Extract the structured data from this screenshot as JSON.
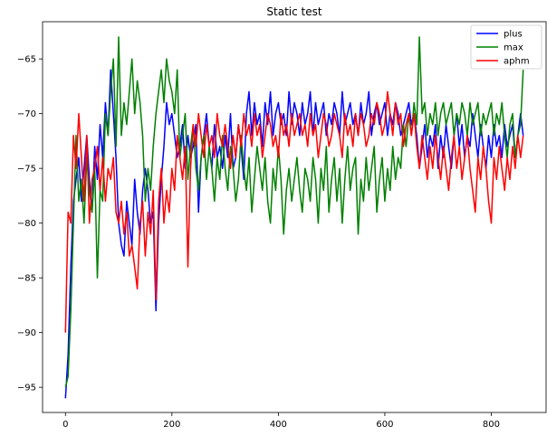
{
  "chart_data": {
    "type": "line",
    "title": "Static test",
    "xlabel": "",
    "ylabel": "",
    "xlim": [
      -43,
      903
    ],
    "ylim": [
      -97.3,
      -61.6
    ],
    "xticks": [
      0,
      200,
      400,
      600,
      800
    ],
    "yticks": [
      -95,
      -90,
      -85,
      -80,
      -75,
      -70,
      -65
    ],
    "xtick_labels": [
      "0",
      "200",
      "400",
      "600",
      "800"
    ],
    "ytick_labels": [
      "−95",
      "−90",
      "−85",
      "−80",
      "−75",
      "−70",
      "−65"
    ],
    "grid": false,
    "legend": "top-right",
    "series": [
      {
        "name": "plus",
        "color": "#0000ff",
        "x": [
          0,
          5,
          10,
          15,
          20,
          25,
          30,
          35,
          40,
          45,
          50,
          55,
          60,
          65,
          70,
          75,
          80,
          85,
          90,
          95,
          100,
          105,
          110,
          115,
          120,
          125,
          130,
          135,
          140,
          145,
          150,
          155,
          160,
          165,
          170,
          175,
          180,
          185,
          190,
          195,
          200,
          205,
          210,
          215,
          220,
          225,
          230,
          235,
          240,
          245,
          250,
          255,
          260,
          265,
          270,
          275,
          280,
          285,
          290,
          295,
          300,
          305,
          310,
          315,
          320,
          325,
          330,
          335,
          340,
          345,
          350,
          355,
          360,
          365,
          370,
          375,
          380,
          385,
          390,
          395,
          400,
          405,
          410,
          415,
          420,
          425,
          430,
          435,
          440,
          445,
          450,
          455,
          460,
          465,
          470,
          475,
          480,
          485,
          490,
          495,
          500,
          505,
          510,
          515,
          520,
          525,
          530,
          535,
          540,
          545,
          550,
          555,
          560,
          565,
          570,
          575,
          580,
          585,
          590,
          595,
          600,
          605,
          610,
          615,
          620,
          625,
          630,
          635,
          640,
          645,
          650,
          655,
          660,
          665,
          670,
          675,
          680,
          685,
          690,
          695,
          700,
          705,
          710,
          715,
          720,
          725,
          730,
          735,
          740,
          745,
          750,
          755,
          760,
          765,
          770,
          775,
          780,
          785,
          790,
          795,
          800,
          805,
          810,
          815,
          820,
          825,
          830,
          835,
          840,
          845,
          850,
          855,
          860
        ],
        "y": [
          -96,
          -92,
          -84,
          -78,
          -76,
          -74,
          -78,
          -75,
          -72,
          -76,
          -79,
          -73,
          -76,
          -71,
          -74,
          -69,
          -72,
          -66,
          -70,
          -74,
          -80,
          -82,
          -83,
          -78,
          -80,
          -82,
          -76,
          -79,
          -81,
          -77,
          -75,
          -77,
          -80,
          -79,
          -88,
          -80,
          -76,
          -73,
          -69,
          -71,
          -70,
          -72,
          -74,
          -73,
          -71,
          -75,
          -72,
          -74,
          -73,
          -71,
          -79,
          -74,
          -72,
          -70,
          -73,
          -75,
          -71,
          -74,
          -73,
          -75,
          -72,
          -74,
          -70,
          -75,
          -74,
          -71,
          -73,
          -76,
          -70,
          -68,
          -72,
          -69,
          -71,
          -70,
          -73,
          -69,
          -71,
          -68,
          -72,
          -70,
          -69,
          -71,
          -70,
          -72,
          -68,
          -71,
          -69,
          -70,
          -72,
          -69,
          -71,
          -70,
          -68,
          -72,
          -69,
          -71,
          -70,
          -69,
          -72,
          -70,
          -71,
          -69,
          -70,
          -72,
          -68,
          -71,
          -70,
          -69,
          -71,
          -70,
          -72,
          -69,
          -71,
          -70,
          -68,
          -72,
          -70,
          -69,
          -71,
          -70,
          -69,
          -72,
          -70,
          -71,
          -69,
          -70,
          -72,
          -71,
          -70,
          -69,
          -71,
          -70,
          -72,
          -75,
          -73,
          -71,
          -74,
          -72,
          -73,
          -71,
          -75,
          -72,
          -74,
          -71,
          -73,
          -75,
          -72,
          -70,
          -73,
          -71,
          -74,
          -72,
          -73,
          -70,
          -72,
          -74,
          -71,
          -73,
          -75,
          -72,
          -74,
          -71,
          -73,
          -72,
          -74,
          -71,
          -73,
          -72,
          -71,
          -74,
          -72,
          -70,
          -72
        ]
      },
      {
        "name": "max",
        "color": "#008000",
        "x": [
          0,
          5,
          10,
          15,
          20,
          25,
          30,
          35,
          40,
          45,
          50,
          55,
          60,
          65,
          70,
          75,
          80,
          85,
          90,
          95,
          100,
          105,
          110,
          115,
          120,
          125,
          130,
          135,
          140,
          145,
          150,
          155,
          160,
          165,
          170,
          175,
          180,
          185,
          190,
          195,
          200,
          205,
          210,
          215,
          220,
          225,
          230,
          235,
          240,
          245,
          250,
          255,
          260,
          265,
          270,
          275,
          280,
          285,
          290,
          295,
          300,
          305,
          310,
          315,
          320,
          325,
          330,
          335,
          340,
          345,
          350,
          355,
          360,
          365,
          370,
          375,
          380,
          385,
          390,
          395,
          400,
          405,
          410,
          415,
          420,
          425,
          430,
          435,
          440,
          445,
          450,
          455,
          460,
          465,
          470,
          475,
          480,
          485,
          490,
          495,
          500,
          505,
          510,
          515,
          520,
          525,
          530,
          535,
          540,
          545,
          550,
          555,
          560,
          565,
          570,
          575,
          580,
          585,
          590,
          595,
          600,
          605,
          610,
          615,
          620,
          625,
          630,
          635,
          640,
          645,
          650,
          655,
          660,
          665,
          670,
          675,
          680,
          685,
          690,
          695,
          700,
          705,
          710,
          715,
          720,
          725,
          730,
          735,
          740,
          745,
          750,
          755,
          760,
          765,
          770,
          775,
          780,
          785,
          790,
          795,
          800,
          805,
          810,
          815,
          820,
          825,
          830,
          835,
          840,
          845,
          850,
          855,
          860
        ],
        "y": [
          -95,
          -94,
          -88,
          -80,
          -72,
          -78,
          -76,
          -80,
          -74,
          -77,
          -79,
          -75,
          -85,
          -77,
          -78,
          -70,
          -72,
          -68,
          -65,
          -73,
          -63,
          -72,
          -69,
          -71,
          -68,
          -65,
          -70,
          -67,
          -69,
          -72,
          -78,
          -75,
          -77,
          -73,
          -70,
          -68,
          -66,
          -69,
          -65,
          -67,
          -68,
          -70,
          -66,
          -74,
          -72,
          -70,
          -76,
          -73,
          -71,
          -75,
          -77,
          -74,
          -72,
          -76,
          -73,
          -75,
          -78,
          -74,
          -76,
          -72,
          -75,
          -77,
          -73,
          -75,
          -78,
          -76,
          -72,
          -75,
          -77,
          -74,
          -79,
          -76,
          -73,
          -75,
          -77,
          -74,
          -78,
          -80,
          -75,
          -77,
          -73,
          -76,
          -81,
          -77,
          -75,
          -78,
          -76,
          -74,
          -77,
          -79,
          -75,
          -76,
          -78,
          -74,
          -76,
          -80,
          -75,
          -77,
          -73,
          -79,
          -76,
          -74,
          -78,
          -75,
          -80,
          -76,
          -73,
          -77,
          -75,
          -74,
          -81,
          -76,
          -78,
          -74,
          -77,
          -75,
          -73,
          -79,
          -76,
          -74,
          -78,
          -75,
          -77,
          -73,
          -76,
          -74,
          -75,
          -71,
          -73,
          -70,
          -72,
          -69,
          -71,
          -63,
          -70,
          -69,
          -72,
          -70,
          -71,
          -69,
          -72,
          -70,
          -69,
          -71,
          -70,
          -69,
          -72,
          -70,
          -71,
          -69,
          -70,
          -72,
          -69,
          -71,
          -70,
          -69,
          -72,
          -70,
          -71,
          -70,
          -69,
          -72,
          -70,
          -71,
          -69,
          -72,
          -74,
          -71,
          -70,
          -74,
          -72,
          -71,
          -66
        ]
      },
      {
        "name": "aphm",
        "color": "#ff0000",
        "x": [
          0,
          5,
          10,
          15,
          20,
          25,
          30,
          35,
          40,
          45,
          50,
          55,
          60,
          65,
          70,
          75,
          80,
          85,
          90,
          95,
          100,
          105,
          110,
          115,
          120,
          125,
          130,
          135,
          140,
          145,
          150,
          155,
          160,
          165,
          170,
          175,
          180,
          185,
          190,
          195,
          200,
          205,
          210,
          215,
          220,
          225,
          230,
          235,
          240,
          245,
          250,
          255,
          260,
          265,
          270,
          275,
          280,
          285,
          290,
          295,
          300,
          305,
          310,
          315,
          320,
          325,
          330,
          335,
          340,
          345,
          350,
          355,
          360,
          365,
          370,
          375,
          380,
          385,
          390,
          395,
          400,
          405,
          410,
          415,
          420,
          425,
          430,
          435,
          440,
          445,
          450,
          455,
          460,
          465,
          470,
          475,
          480,
          485,
          490,
          495,
          500,
          505,
          510,
          515,
          520,
          525,
          530,
          535,
          540,
          545,
          550,
          555,
          560,
          565,
          570,
          575,
          580,
          585,
          590,
          595,
          600,
          605,
          610,
          615,
          620,
          625,
          630,
          635,
          640,
          645,
          650,
          655,
          660,
          665,
          670,
          675,
          680,
          685,
          690,
          695,
          700,
          705,
          710,
          715,
          720,
          725,
          730,
          735,
          740,
          745,
          750,
          755,
          760,
          765,
          770,
          775,
          780,
          785,
          790,
          795,
          800,
          805,
          810,
          815,
          820,
          825,
          830,
          835,
          840,
          845,
          850,
          855,
          860
        ],
        "y": [
          -90,
          -79,
          -80,
          -72,
          -75,
          -70,
          -74,
          -78,
          -72,
          -80,
          -76,
          -75,
          -73,
          -77,
          -74,
          -78,
          -75,
          -76,
          -74,
          -79,
          -80,
          -78,
          -81,
          -79,
          -83,
          -82,
          -84,
          -86,
          -80,
          -78,
          -83,
          -79,
          -81,
          -77,
          -87,
          -78,
          -75,
          -80,
          -77,
          -79,
          -75,
          -77,
          -72,
          -74,
          -76,
          -73,
          -84,
          -75,
          -71,
          -73,
          -70,
          -72,
          -74,
          -71,
          -73,
          -72,
          -74,
          -70,
          -72,
          -73,
          -71,
          -73,
          -75,
          -72,
          -74,
          -71,
          -73,
          -70,
          -72,
          -71,
          -73,
          -70,
          -72,
          -71,
          -74,
          -72,
          -70,
          -71,
          -73,
          -72,
          -74,
          -70,
          -72,
          -71,
          -73,
          -70,
          -72,
          -71,
          -70,
          -72,
          -71,
          -73,
          -70,
          -72,
          -71,
          -74,
          -72,
          -70,
          -71,
          -73,
          -72,
          -70,
          -71,
          -72,
          -74,
          -70,
          -72,
          -71,
          -73,
          -70,
          -72,
          -70,
          -71,
          -73,
          -72,
          -70,
          -71,
          -69,
          -70,
          -72,
          -71,
          -68,
          -70,
          -72,
          -69,
          -71,
          -70,
          -73,
          -71,
          -70,
          -72,
          -70,
          -73,
          -75,
          -72,
          -74,
          -76,
          -73,
          -75,
          -72,
          -74,
          -76,
          -73,
          -75,
          -77,
          -74,
          -72,
          -75,
          -73,
          -76,
          -74,
          -72,
          -75,
          -77,
          -79,
          -74,
          -76,
          -73,
          -75,
          -78,
          -80,
          -74,
          -76,
          -73,
          -75,
          -77,
          -74,
          -76,
          -73,
          -75,
          -72,
          -74,
          -72
        ]
      }
    ]
  }
}
